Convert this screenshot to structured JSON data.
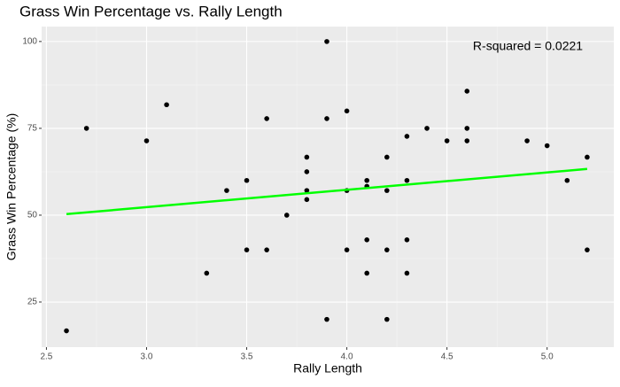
{
  "chart_data": {
    "type": "scatter",
    "title": "Grass Win Percentage vs. Rally Length",
    "x_label": "Rally Length",
    "y_label": "Grass Win Percentage (%)",
    "annotation": "R-squared = 0.0221",
    "grid": true,
    "xlim": [
      2.476,
      5.333
    ],
    "ylim": [
      12.0,
      104.3
    ],
    "xticks": [
      2.5,
      {
        "value": 3,
        "label": "3.0"
      },
      3.5,
      {
        "value": 4,
        "label": "4.0"
      },
      4.5,
      {
        "value": 5,
        "label": "5.0"
      }
    ],
    "yticks": [
      25,
      50,
      75,
      100
    ],
    "series": [
      {
        "color": "#000000",
        "x": [
          2.6,
          2.7,
          3.0,
          3.1,
          3.3,
          3.4,
          3.5,
          3.5,
          3.6,
          3.6,
          3.7,
          3.8,
          3.8,
          3.8,
          3.8,
          3.9,
          3.9,
          3.9,
          4.0,
          4.0,
          4.0,
          4.1,
          4.1,
          4.1,
          4.1,
          4.2,
          4.2,
          4.2,
          4.2,
          4.3,
          4.3,
          4.3,
          4.3,
          4.4,
          4.5,
          4.6,
          4.6,
          4.6,
          4.9,
          5.0,
          5.1,
          5.2,
          5.2
        ],
        "values": [
          16.7,
          75,
          71.4,
          81.8,
          33.3,
          57.1,
          60,
          40,
          77.8,
          40,
          50,
          66.7,
          62.5,
          57.1,
          54.5,
          100,
          77.8,
          20,
          80,
          57.1,
          40,
          60,
          58.3,
          42.9,
          33.3,
          66.7,
          57.1,
          40,
          20,
          72.7,
          60,
          42.9,
          33.3,
          75,
          71.4,
          85.7,
          75,
          71.4,
          71.4,
          70,
          60,
          66.7,
          40
        ]
      }
    ],
    "trend_line": {
      "color": "#00ff00",
      "x": [
        2.6,
        5.2
      ],
      "values": [
        50.3,
        63.3
      ]
    }
  }
}
